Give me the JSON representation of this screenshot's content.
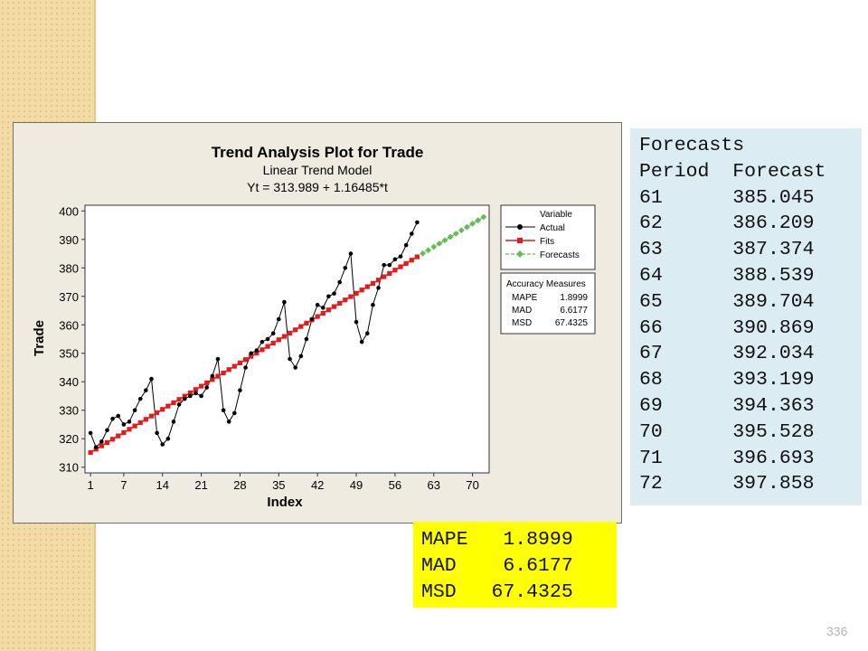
{
  "chart_data": {
    "type": "line",
    "title": "Trend Analysis Plot for Trade",
    "subtitle": "Linear Trend Model",
    "equation": "Yt = 313.989 + 1.16485*t",
    "xlabel": "Index",
    "ylabel": "Trade",
    "xlim": [
      0,
      73
    ],
    "ylim": [
      308,
      402
    ],
    "x_ticks": [
      1,
      7,
      14,
      21,
      28,
      35,
      42,
      49,
      56,
      63,
      70
    ],
    "y_ticks": [
      310,
      320,
      330,
      340,
      350,
      360,
      370,
      380,
      390,
      400
    ],
    "legend": {
      "title": "Variable",
      "placement": "top-right",
      "entries": [
        "Actual",
        "Fits",
        "Forecasts"
      ]
    },
    "series": [
      {
        "name": "Actual",
        "color": "#000000",
        "x": [
          1,
          2,
          3,
          4,
          5,
          6,
          7,
          8,
          9,
          10,
          11,
          12,
          13,
          14,
          15,
          16,
          17,
          18,
          19,
          20,
          21,
          22,
          23,
          24,
          25,
          26,
          27,
          28,
          29,
          30,
          31,
          32,
          33,
          34,
          35,
          36,
          37,
          38,
          39,
          40,
          41,
          42,
          43,
          44,
          45,
          46,
          47,
          48,
          49,
          50,
          51,
          52,
          53,
          54,
          55,
          56,
          57,
          58,
          59,
          60
        ],
        "values": [
          322,
          317,
          319,
          323,
          327,
          328,
          325,
          326,
          330,
          334,
          337,
          341,
          322,
          318,
          320,
          326,
          332,
          334,
          335,
          336,
          335,
          338,
          342,
          348,
          330,
          326,
          329,
          337,
          345,
          350,
          351,
          354,
          355,
          357,
          362,
          368,
          348,
          345,
          349,
          355,
          362,
          367,
          366,
          370,
          371,
          375,
          380,
          385,
          361,
          354,
          357,
          367,
          373,
          381,
          381,
          383,
          384,
          388,
          392,
          396
        ]
      },
      {
        "name": "Fits",
        "color": "#e41a1c",
        "intercept": 313.989,
        "slope": 1.16485,
        "x_range": [
          1,
          60
        ]
      },
      {
        "name": "Forecasts",
        "color": "#66bb55",
        "x": [
          61,
          62,
          63,
          64,
          65,
          66,
          67,
          68,
          69,
          70,
          71,
          72
        ],
        "values": [
          385.045,
          386.209,
          387.374,
          388.539,
          389.704,
          390.869,
          392.034,
          393.199,
          394.363,
          395.528,
          396.693,
          397.858
        ]
      }
    ],
    "accuracy_legend": {
      "title": "Accuracy Measures",
      "rows": [
        {
          "label": "MAPE",
          "value": "1.8999"
        },
        {
          "label": "MAD",
          "value": "6.6177"
        },
        {
          "label": "MSD",
          "value": "67.4325"
        }
      ]
    }
  },
  "forecasts_table": {
    "title": "Forecasts",
    "header_period": "Period",
    "header_forecast": "Forecast",
    "rows": [
      {
        "period": "61",
        "forecast": "385.045"
      },
      {
        "period": "62",
        "forecast": "386.209"
      },
      {
        "period": "63",
        "forecast": "387.374"
      },
      {
        "period": "64",
        "forecast": "388.539"
      },
      {
        "period": "65",
        "forecast": "389.704"
      },
      {
        "period": "66",
        "forecast": "390.869"
      },
      {
        "period": "67",
        "forecast": "392.034"
      },
      {
        "period": "68",
        "forecast": "393.199"
      },
      {
        "period": "69",
        "forecast": "394.363"
      },
      {
        "period": "70",
        "forecast": "395.528"
      },
      {
        "period": "71",
        "forecast": "396.693"
      },
      {
        "period": "72",
        "forecast": "397.858"
      }
    ]
  },
  "accuracy_box": {
    "rows": [
      {
        "label": "MAPE",
        "value": "1.8999"
      },
      {
        "label": "MAD",
        "value": "6.6177"
      },
      {
        "label": "MSD",
        "value": "67.4325"
      }
    ]
  },
  "slide": {
    "page_number": "336"
  }
}
